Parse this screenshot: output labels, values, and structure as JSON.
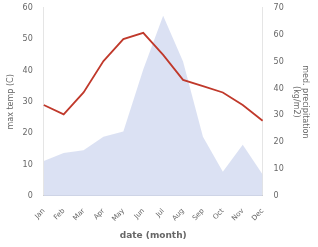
{
  "chart_data": {
    "type": "line",
    "categories": [
      "Jan",
      "Feb",
      "Mar",
      "Apr",
      "May",
      "Jun",
      "Jul",
      "Aug",
      "Sep",
      "Oct",
      "Nov",
      "Dec"
    ],
    "xlabel": "date (month)",
    "ylabel": "max temp (C)",
    "y2label": "med. precipitation\n(kg/m2)",
    "series": [
      {
        "type": "area",
        "color": "#b8c4e8",
        "axis": "y2",
        "values": [
          13,
          16,
          17,
          22,
          24,
          47,
          67,
          50,
          22,
          9,
          19,
          8
        ]
      },
      {
        "type": "line",
        "color": "#c0392b",
        "values": [
          29,
          26,
          33,
          43,
          50,
          52,
          45,
          37,
          35,
          33,
          29,
          24
        ]
      }
    ],
    "ylim": [
      0,
      60
    ],
    "yticks": [
      0,
      10,
      20,
      30,
      40,
      50,
      60
    ],
    "y2lim": [
      0,
      70
    ],
    "y2ticks": [
      0,
      10,
      20,
      30,
      40,
      50,
      60,
      70
    ],
    "grid": false
  }
}
